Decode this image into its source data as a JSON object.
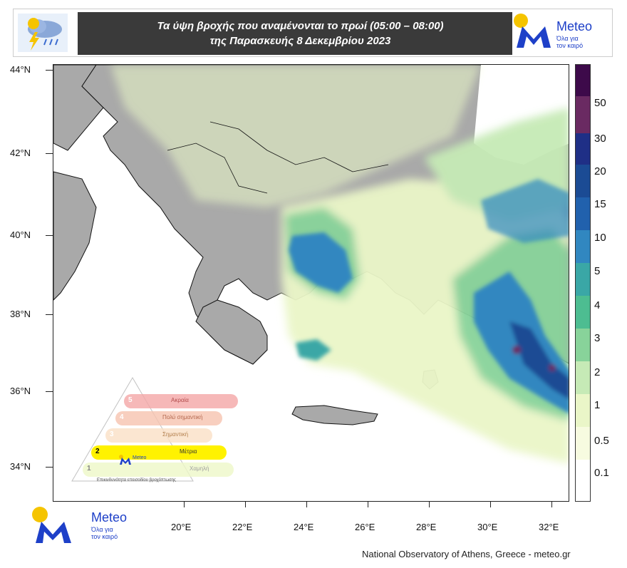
{
  "header": {
    "title_line1": "Τα ύψη βροχής που αναμένονται το πρωί (05:00 – 08:00)",
    "title_line2": "της Παρασκευής 8 Δεκεμβρίου 2023",
    "icon": "rain-cloud-lightning-icon"
  },
  "brand": {
    "name": "Meteo",
    "tagline_line1": "Όλα για",
    "tagline_line2": "τον καιρό",
    "accent_color": "#f5c400",
    "brand_color": "#1e40c8"
  },
  "axes": {
    "lat_labels": [
      "44°N",
      "42°N",
      "40°N",
      "38°N",
      "36°N",
      "34°N"
    ],
    "lon_labels": [
      "20°E",
      "22°E",
      "24°E",
      "26°E",
      "28°E",
      "30°E",
      "32°E"
    ]
  },
  "colorbar": {
    "labels": [
      "50",
      "30",
      "20",
      "15",
      "10",
      "5",
      "4",
      "3",
      "2",
      "1",
      "0.5",
      "0.1"
    ],
    "colors": [
      "#3d0a4a",
      "#6a2a62",
      "#1f2f86",
      "#1b4b94",
      "#2161ad",
      "#3187c0",
      "#3aa7a6",
      "#4dbd91",
      "#88d39a",
      "#c6eab6",
      "#eaf6c8",
      "#f7fbe0",
      "#ffffff"
    ]
  },
  "warning_scale": {
    "levels": [
      {
        "number": "5",
        "label": "Ακραία",
        "color": "#f4a7a7"
      },
      {
        "number": "4",
        "label": "Πολύ σημαντική",
        "color": "#f7c4b0"
      },
      {
        "number": "3",
        "label": "Σημαντική",
        "color": "#fbe0c6"
      },
      {
        "number": "2",
        "label": "Μέτρια",
        "color": "#fff200"
      },
      {
        "number": "1",
        "label": "Χαμηλή",
        "color": "#eef8c8"
      }
    ],
    "caption": "Επικινδυνότητα επεισοδίου βροχόπτωσης",
    "icon": "rain-cloud-icon",
    "logo_text": "Meteo"
  },
  "footer": {
    "credit": "National Observatory of Athens, Greece - meteo.gr"
  }
}
